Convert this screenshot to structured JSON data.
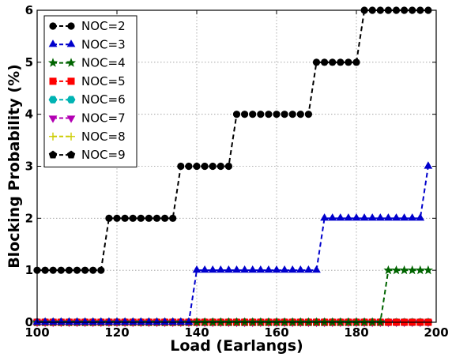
{
  "chart_data": {
    "type": "line",
    "title": "",
    "xlabel": "Load (Earlangs)",
    "ylabel": "Blocking Probability (%)",
    "xlim": [
      100,
      200
    ],
    "ylim": [
      0,
      6
    ],
    "xticks": [
      100,
      120,
      140,
      160,
      180,
      200
    ],
    "yticks": [
      0,
      1,
      2,
      3,
      4,
      5,
      6
    ],
    "grid": true,
    "legend_position": "top-left",
    "x": [
      100,
      102,
      104,
      106,
      108,
      110,
      112,
      114,
      116,
      118,
      120,
      122,
      124,
      126,
      128,
      130,
      132,
      134,
      136,
      138,
      140,
      142,
      144,
      146,
      148,
      150,
      152,
      154,
      156,
      158,
      160,
      162,
      164,
      166,
      168,
      170,
      172,
      174,
      176,
      178,
      180,
      182,
      184,
      186,
      188,
      190,
      192,
      194,
      196,
      198
    ],
    "series": [
      {
        "name": "NOC=2",
        "color": "#000000",
        "marker": "circle",
        "values": [
          1,
          1,
          1,
          1,
          1,
          1,
          1,
          1,
          1,
          2,
          2,
          2,
          2,
          2,
          2,
          2,
          2,
          2,
          3,
          3,
          3,
          3,
          3,
          3,
          3,
          4,
          4,
          4,
          4,
          4,
          4,
          4,
          4,
          4,
          4,
          5,
          5,
          5,
          5,
          5,
          5,
          6,
          6,
          6,
          6,
          6,
          6,
          6,
          6,
          6
        ]
      },
      {
        "name": "NOC=3",
        "color": "#0000cc",
        "marker": "triangle",
        "values": [
          0,
          0,
          0,
          0,
          0,
          0,
          0,
          0,
          0,
          0,
          0,
          0,
          0,
          0,
          0,
          0,
          0,
          0,
          0,
          0,
          1,
          1,
          1,
          1,
          1,
          1,
          1,
          1,
          1,
          1,
          1,
          1,
          1,
          1,
          1,
          1,
          2,
          2,
          2,
          2,
          2,
          2,
          2,
          2,
          2,
          2,
          2,
          2,
          2,
          3
        ]
      },
      {
        "name": "NOC=4",
        "color": "#006400",
        "marker": "star",
        "values": [
          0,
          0,
          0,
          0,
          0,
          0,
          0,
          0,
          0,
          0,
          0,
          0,
          0,
          0,
          0,
          0,
          0,
          0,
          0,
          0,
          0,
          0,
          0,
          0,
          0,
          0,
          0,
          0,
          0,
          0,
          0,
          0,
          0,
          0,
          0,
          0,
          0,
          0,
          0,
          0,
          0,
          0,
          0,
          0,
          1,
          1,
          1,
          1,
          1,
          1
        ]
      },
      {
        "name": "NOC=5",
        "color": "#ff0000",
        "marker": "square",
        "values": [
          0,
          0,
          0,
          0,
          0,
          0,
          0,
          0,
          0,
          0,
          0,
          0,
          0,
          0,
          0,
          0,
          0,
          0,
          0,
          0,
          0,
          0,
          0,
          0,
          0,
          0,
          0,
          0,
          0,
          0,
          0,
          0,
          0,
          0,
          0,
          0,
          0,
          0,
          0,
          0,
          0,
          0,
          0,
          0,
          0,
          0,
          0,
          0,
          0,
          0
        ]
      },
      {
        "name": "NOC=6",
        "color": "#00b3b3",
        "marker": "hexagon",
        "values": [
          0,
          0,
          0,
          0,
          0,
          0,
          0,
          0,
          0,
          0,
          0,
          0,
          0,
          0,
          0,
          0,
          0,
          0,
          0,
          0,
          0,
          0,
          0,
          0,
          0,
          0,
          0,
          0,
          0,
          0,
          0,
          0,
          0,
          0,
          0,
          0,
          0,
          0,
          0,
          0,
          0,
          0,
          0,
          0,
          0,
          0,
          0,
          0,
          0,
          0
        ]
      },
      {
        "name": "NOC=7",
        "color": "#b300b3",
        "marker": "triangle-down",
        "values": [
          0,
          0,
          0,
          0,
          0,
          0,
          0,
          0,
          0,
          0,
          0,
          0,
          0,
          0,
          0,
          0,
          0,
          0,
          0,
          0,
          0,
          0,
          0,
          0,
          0,
          0,
          0,
          0,
          0,
          0,
          0,
          0,
          0,
          0,
          0,
          0,
          0,
          0,
          0,
          0,
          0,
          0,
          0,
          0,
          0,
          0,
          0,
          0,
          0,
          0
        ]
      },
      {
        "name": "NOC=8",
        "color": "#cccc00",
        "marker": "plus",
        "values": [
          0,
          0,
          0,
          0,
          0,
          0,
          0,
          0,
          0,
          0,
          0,
          0,
          0,
          0,
          0,
          0,
          0,
          0,
          0,
          0,
          0,
          0,
          0,
          0,
          0,
          0,
          0,
          0,
          0,
          0,
          0,
          0,
          0,
          0,
          0,
          0,
          0,
          0,
          0,
          0,
          0,
          0,
          0,
          0,
          0,
          0,
          0,
          0,
          0,
          0
        ]
      },
      {
        "name": "NOC=9",
        "color": "#000000",
        "marker": "pentagon",
        "values": [
          0,
          0,
          0,
          0,
          0,
          0,
          0,
          0,
          0,
          0,
          0,
          0,
          0,
          0,
          0,
          0,
          0,
          0,
          0,
          0,
          0,
          0,
          0,
          0,
          0,
          0,
          0,
          0,
          0,
          0,
          0,
          0,
          0,
          0,
          0,
          0,
          0,
          0,
          0,
          0,
          0,
          0,
          0,
          0,
          0,
          0,
          0,
          0,
          0,
          0
        ]
      }
    ]
  }
}
